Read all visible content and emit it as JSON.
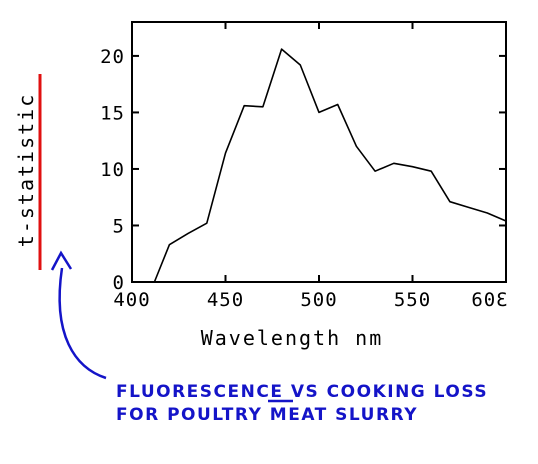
{
  "chart_data": {
    "type": "line",
    "xlabel": "Wavelength nm",
    "ylabel": "t-statistic",
    "xlim": [
      400,
      600
    ],
    "ylim": [
      0,
      23
    ],
    "x_ticks": [
      400,
      450,
      500,
      550,
      600
    ],
    "x_tick_labels": [
      "400",
      "450",
      "500",
      "550",
      "60Ɛ"
    ],
    "y_ticks": [
      0,
      5,
      10,
      15,
      20
    ],
    "y_tick_labels": [
      "0",
      "5",
      "10",
      "15",
      "20"
    ],
    "grid": false,
    "series": [
      {
        "x": [
          412,
          420,
          430,
          440,
          450,
          460,
          470,
          480,
          490,
          500,
          510,
          520,
          530,
          540,
          550,
          560,
          570,
          580,
          590,
          600
        ],
        "y": [
          0,
          3.3,
          4.3,
          5.2,
          11.4,
          15.6,
          15.5,
          20.6,
          19.2,
          15.0,
          15.7,
          12.0,
          9.8,
          10.5,
          10.2,
          9.8,
          7.1,
          6.6,
          6.1,
          5.4
        ]
      }
    ],
    "annotations": [
      {
        "text_lines": [
          "FLUORESCENCE VS COOKING LOSS",
          "FOR POULTRY MEAT SLURRY"
        ],
        "color": "#1414c8",
        "underlined_word": "VS"
      }
    ],
    "ylabel_underline_color": "#e01010",
    "line_color": "#000000"
  }
}
